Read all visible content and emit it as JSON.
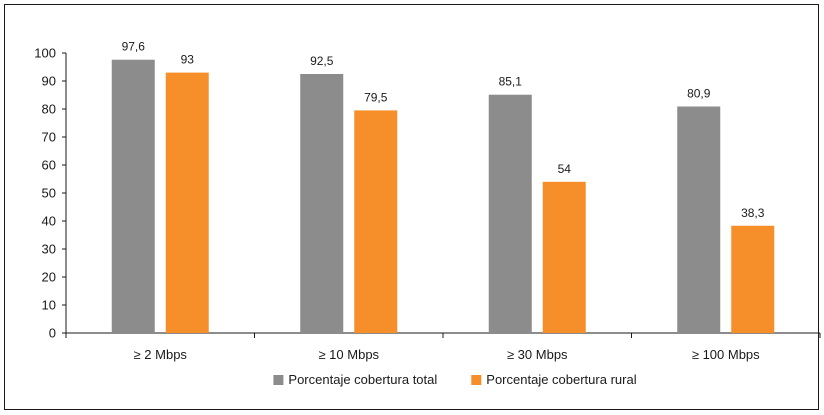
{
  "chart_data": {
    "type": "bar",
    "title": "",
    "xlabel": "",
    "ylabel": "",
    "categories": [
      "≥ 2 Mbps",
      "≥ 10 Mbps",
      "≥ 30 Mbps",
      "≥ 100 Mbps"
    ],
    "series": [
      {
        "name": "Porcentaje cobertura total",
        "color": "#8c8c8c",
        "values": [
          97.6,
          92.5,
          85.1,
          80.9
        ],
        "labels": [
          "97,6",
          "92,5",
          "85,1",
          "80,9"
        ]
      },
      {
        "name": "Porcentaje cobertura rural",
        "color": "#f68e2a",
        "values": [
          93,
          79.5,
          54,
          38.3
        ],
        "labels": [
          "93",
          "79,5",
          "54",
          "38,3"
        ]
      }
    ],
    "ylim": [
      0,
      100
    ],
    "yticks": [
      0,
      10,
      20,
      30,
      40,
      50,
      60,
      70,
      80,
      90,
      100
    ],
    "grid": false,
    "legend_position": "bottom"
  }
}
